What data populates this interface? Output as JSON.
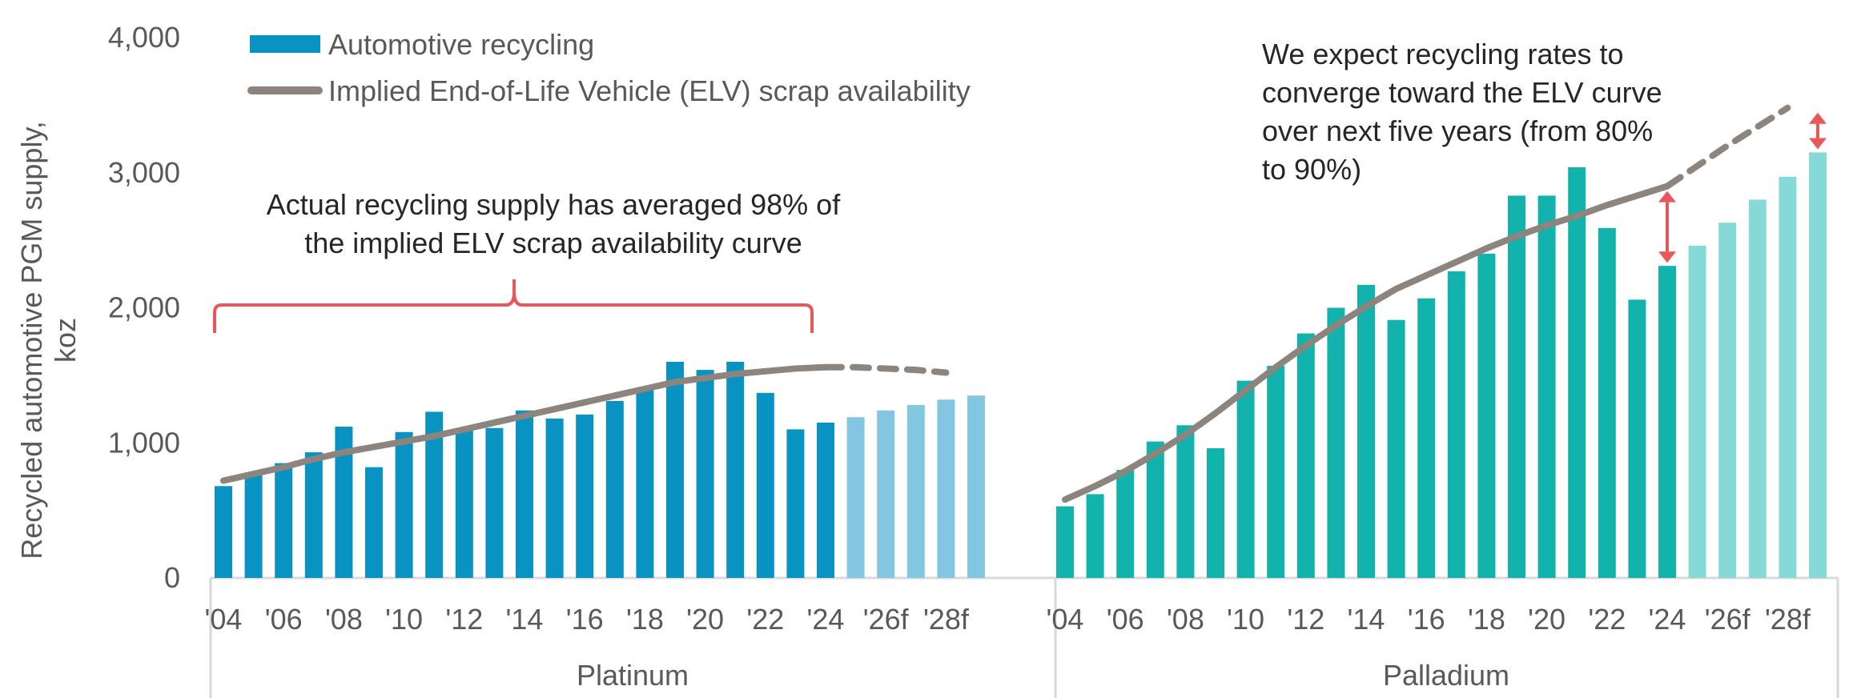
{
  "chart_data": {
    "type": "bar",
    "ylabel_lines": [
      "Recycled automotive PGM supply,",
      "koz"
    ],
    "ylim": [
      0,
      4000
    ],
    "yticks": [
      0,
      1000,
      2000,
      3000,
      4000
    ],
    "ytick_labels": [
      "0",
      "1,000",
      "2,000",
      "3,000",
      "4,000"
    ],
    "legend": {
      "placement": "top-left",
      "bar_label": "Automotive recycling",
      "line_label": "Implied End-of-Life Vehicle (ELV) scrap availability"
    },
    "colors": {
      "platinum_actual": "#0893c2",
      "platinum_forecast": "#82c6e1",
      "palladium_actual": "#11b3ac",
      "palladium_forecast": "#85d9d6",
      "elv_line": "#8c847d",
      "annotation": "#e8585a",
      "axis": "#d9d9d9",
      "legend_bar": "#0893c2"
    },
    "years": [
      "2004",
      "2005",
      "2006",
      "2007",
      "2008",
      "2009",
      "2010",
      "2011",
      "2012",
      "2013",
      "2014",
      "2015",
      "2016",
      "2017",
      "2018",
      "2019",
      "2020",
      "2021",
      "2022",
      "2023",
      "2024",
      "2025f",
      "2026f",
      "2027f",
      "2028f",
      "2029f"
    ],
    "forecast_start_index": 21,
    "x_tick_labels": [
      {
        "index": 0,
        "label": "'04"
      },
      {
        "index": 2,
        "label": "'06"
      },
      {
        "index": 4,
        "label": "'08"
      },
      {
        "index": 6,
        "label": "'10"
      },
      {
        "index": 8,
        "label": "'12"
      },
      {
        "index": 10,
        "label": "'14"
      },
      {
        "index": 12,
        "label": "'16"
      },
      {
        "index": 14,
        "label": "'18"
      },
      {
        "index": 16,
        "label": "'20"
      },
      {
        "index": 18,
        "label": "'22"
      },
      {
        "index": 20,
        "label": "'24"
      },
      {
        "index": 22,
        "label": "'26f"
      },
      {
        "index": 24,
        "label": "'28f"
      }
    ],
    "groups": [
      {
        "name": "Platinum",
        "values": [
          680,
          760,
          850,
          930,
          1120,
          820,
          1080,
          1230,
          1100,
          1110,
          1240,
          1180,
          1210,
          1310,
          1390,
          1600,
          1540,
          1600,
          1370,
          1100,
          1150,
          1190,
          1240,
          1280,
          1320,
          1350
        ],
        "elv_solid": [
          720,
          770,
          820,
          880,
          930,
          970,
          1010,
          1050,
          1100,
          1150,
          1200,
          1250,
          1300,
          1350,
          1400,
          1450,
          1480,
          1510,
          1530,
          1550,
          1560
        ],
        "elv_dashed": [
          1560,
          1560,
          1550,
          1540,
          1520
        ]
      },
      {
        "name": "Palladium",
        "values": [
          530,
          620,
          800,
          1010,
          1130,
          960,
          1460,
          1570,
          1810,
          2000,
          2170,
          1910,
          2070,
          2270,
          2400,
          2830,
          2830,
          3040,
          2590,
          2060,
          2310,
          2460,
          2630,
          2800,
          2970,
          3150
        ],
        "elv_solid": [
          580,
          680,
          790,
          920,
          1060,
          1220,
          1390,
          1560,
          1720,
          1870,
          2010,
          2140,
          2240,
          2340,
          2440,
          2530,
          2610,
          2680,
          2760,
          2830,
          2900
        ],
        "elv_dashed": [
          2900,
          3050,
          3200,
          3340,
          3480
        ]
      }
    ],
    "annotations": {
      "platinum_note": [
        "Actual recycling supply has averaged 98% of",
        "the implied ELV scrap availability curve"
      ],
      "palladium_note": [
        "We expect recycling rates to",
        "converge toward the ELV curve",
        "over next five years (from 80%",
        "to 90%)"
      ]
    }
  }
}
